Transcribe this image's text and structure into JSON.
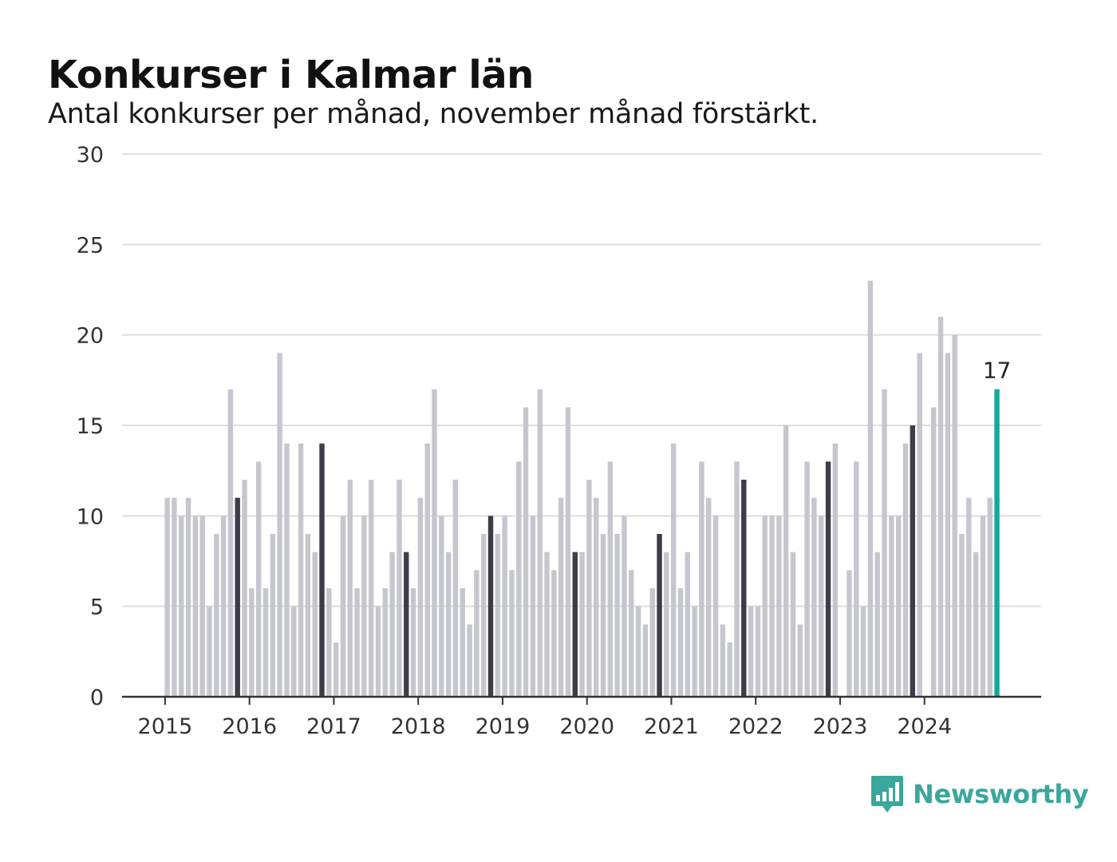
{
  "chart_data": {
    "type": "bar",
    "title": "Konkurser i Kalmar län",
    "subtitle": "Antal konkurser per månad, november månad förstärkt.",
    "xlabel": "",
    "ylabel": "",
    "ylim": [
      0,
      30
    ],
    "yticks": [
      0,
      5,
      10,
      15,
      20,
      25,
      30
    ],
    "year_labels": [
      "2015",
      "2016",
      "2017",
      "2018",
      "2019",
      "2020",
      "2021",
      "2022",
      "2023",
      "2024"
    ],
    "start": "2015-01",
    "end": "2024-11",
    "highlight_month": "november",
    "grid": true,
    "values": [
      11,
      11,
      10,
      11,
      10,
      10,
      5,
      9,
      10,
      17,
      11,
      12,
      6,
      13,
      6,
      9,
      19,
      14,
      5,
      14,
      9,
      8,
      14,
      6,
      3,
      10,
      12,
      6,
      10,
      12,
      5,
      6,
      8,
      12,
      8,
      6,
      11,
      14,
      17,
      10,
      8,
      12,
      6,
      4,
      7,
      9,
      10,
      9,
      10,
      7,
      13,
      16,
      10,
      17,
      8,
      7,
      11,
      16,
      8,
      8,
      12,
      11,
      9,
      13,
      9,
      10,
      7,
      5,
      4,
      6,
      9,
      8,
      14,
      6,
      8,
      5,
      13,
      11,
      10,
      4,
      3,
      13,
      12,
      5,
      5,
      10,
      10,
      10,
      15,
      8,
      4,
      13,
      11,
      10,
      13,
      14,
      0,
      7,
      13,
      5,
      23,
      8,
      17,
      10,
      10,
      14,
      15,
      19,
      0,
      16,
      21,
      19,
      20,
      9,
      11,
      8,
      10,
      11,
      17
    ],
    "last_value_label": "17",
    "colors": {
      "bar": "#c6c6cf",
      "november": "#3d3c48",
      "latest": "#14a89c",
      "grid": "#dedede",
      "axis": "#333333",
      "tick_text": "#333333"
    }
  },
  "brand": {
    "name": "Newsworthy",
    "icon": "newsworthy-logo-icon",
    "color": "#3aa79c"
  }
}
